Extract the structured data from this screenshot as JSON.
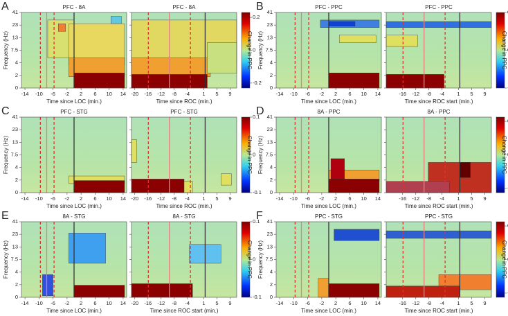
{
  "chart_data": [
    {
      "type": "heatmap",
      "label": "A",
      "ylabel": "Frequency (Hz)",
      "yticks": [
        0,
        2,
        4,
        7.5,
        13,
        23,
        41
      ],
      "colorbar": {
        "label": "Change in PPC",
        "lim": [
          -0.23,
          0.23
        ],
        "ticks": [
          0.2,
          0,
          -0.2
        ]
      },
      "subplots": [
        {
          "title": "PFC - 8A",
          "xlabel": "Time since LOC (min.)",
          "xlim": [
            -15,
            15
          ],
          "xticks": [
            -14,
            -10,
            -6,
            -2,
            2,
            6,
            10,
            14
          ]
        },
        {
          "title": "PFC - 8A",
          "xlabel": "Time since ROC (min.)",
          "xlim": [
            -21,
            11
          ],
          "xticks": [
            -20,
            -16,
            -12,
            -8,
            -4,
            1,
            5,
            9
          ]
        }
      ]
    },
    {
      "type": "heatmap",
      "label": "B",
      "ylabel": "Frequency (Hz)",
      "yticks": [
        0,
        2,
        4,
        7.5,
        13,
        23,
        41
      ],
      "colorbar": {
        "label": "Change in PPC",
        "lim": [
          -0.1,
          0.1
        ],
        "ticks": [
          0.1,
          0,
          -0.1
        ]
      },
      "subplots": [
        {
          "title": "PFC - PPC",
          "xlabel": "Time since LOC (min.)",
          "xlim": [
            -15,
            15
          ],
          "xticks": [
            -14,
            -10,
            -6,
            -2,
            2,
            6,
            10,
            14
          ]
        },
        {
          "title": "PFC - PPC",
          "xlabel": "Time since ROC start (min.)",
          "xlim": [
            -21,
            11
          ],
          "xticks": [
            -16,
            -12,
            -8,
            -4,
            1,
            5,
            9
          ]
        }
      ]
    },
    {
      "type": "heatmap",
      "label": "C",
      "ylabel": "Frequency (Hz)",
      "yticks": [
        0,
        2,
        4,
        7.5,
        13,
        23,
        41
      ],
      "colorbar": {
        "label": "Change in PPC",
        "lim": [
          -0.1,
          0.1
        ],
        "ticks": [
          0.1,
          0,
          -0.1
        ]
      },
      "subplots": [
        {
          "title": "PFC - STG",
          "xlabel": "Time since LOC (min.)",
          "xlim": [
            -15,
            15
          ],
          "xticks": [
            -14,
            -10,
            -6,
            -2,
            2,
            6,
            10,
            14
          ]
        },
        {
          "title": "PFC - STG",
          "xlabel": "Time since ROC (min.)",
          "xlim": [
            -21,
            11
          ],
          "xticks": [
            -20,
            -16,
            -12,
            -8,
            -4,
            1,
            5,
            9
          ]
        }
      ]
    },
    {
      "type": "heatmap",
      "label": "D",
      "ylabel": "Frequency (Hz)",
      "yticks": [
        0,
        2,
        4,
        7.5,
        13,
        23,
        41
      ],
      "colorbar": {
        "label": "Change in PPC",
        "lim": [
          -0.045,
          0.045
        ],
        "ticks": [
          0.04,
          0,
          -0.04
        ]
      },
      "subplots": [
        {
          "title": "8A - PPC",
          "xlabel": "Time since LOC (min.)",
          "xlim": [
            -15,
            15
          ],
          "xticks": [
            -14,
            -10,
            -6,
            -2,
            2,
            6,
            10,
            14
          ]
        },
        {
          "title": "8A - PPC",
          "xlabel": "Time since ROC start (min.)",
          "xlim": [
            -21,
            11
          ],
          "xticks": [
            -16,
            -12,
            -8,
            -4,
            1,
            5,
            9
          ]
        }
      ]
    },
    {
      "type": "heatmap",
      "label": "E",
      "ylabel": "Frequency (Hz)",
      "yticks": [
        0,
        2,
        4,
        7.5,
        13,
        23,
        41
      ],
      "colorbar": {
        "label": "Change in PPC",
        "lim": [
          -0.1,
          0.1
        ],
        "ticks": [
          0.1,
          0,
          -0.1
        ]
      },
      "subplots": [
        {
          "title": "8A - STG",
          "xlabel": "Time since LOC (min.)",
          "xlim": [
            -15,
            15
          ],
          "xticks": [
            -14,
            -10,
            -6,
            -2,
            2,
            6,
            10,
            14
          ]
        },
        {
          "title": "8A - STG",
          "xlabel": "Time since ROC start (min.)",
          "xlim": [
            -21,
            11
          ],
          "xticks": [
            -20,
            -16,
            -12,
            -8,
            -4,
            1,
            5,
            9
          ]
        }
      ]
    },
    {
      "type": "heatmap",
      "label": "F",
      "ylabel": "Frequency (Hz)",
      "yticks": [
        0,
        2,
        4,
        7.5,
        13,
        23,
        41
      ],
      "colorbar": {
        "label": "Change in PPC",
        "lim": [
          -0.045,
          0.045
        ],
        "ticks": [
          0.04,
          0,
          -0.04
        ]
      },
      "subplots": [
        {
          "title": "PPC - STG",
          "xlabel": "Time since LOC (min.)",
          "xlim": [
            -15,
            15
          ],
          "xticks": [
            -14,
            -10,
            -6,
            -2,
            2,
            6,
            10,
            14
          ]
        },
        {
          "title": "PPC - STG",
          "xlabel": "Time since ROC start (min.)",
          "xlim": [
            -21,
            11
          ],
          "xticks": [
            -16,
            -12,
            -8,
            -4,
            1,
            5,
            9
          ]
        }
      ]
    }
  ]
}
